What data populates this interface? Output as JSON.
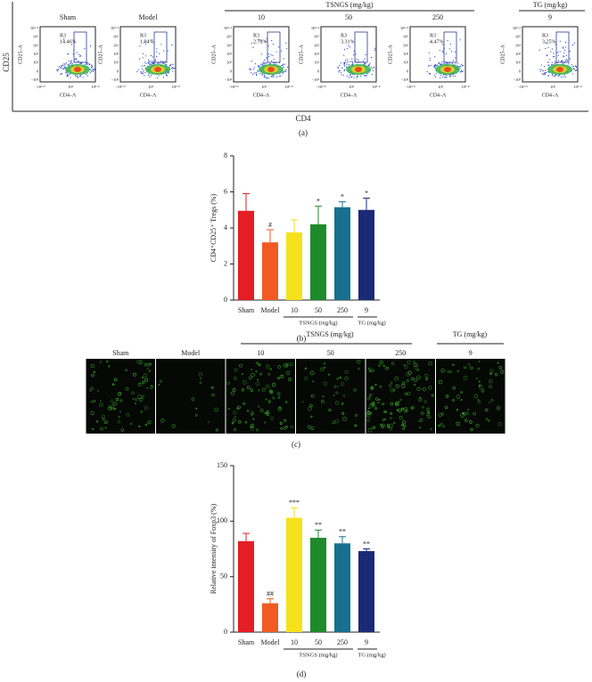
{
  "figure": {
    "panel_labels": [
      "(a)",
      "(b)",
      "(c)",
      "(d)"
    ]
  },
  "flow": {
    "group_headers": [
      "TSNGS (mg/kg)",
      "TG (mg/kg)"
    ],
    "axis_title_y": "CD25",
    "axis_title_x": "CD4",
    "y_axis_label": "CD25–A",
    "x_axis_label": "CD4–A",
    "y_ticks": [
      "10⁵·⁴",
      "10⁵",
      "10⁴",
      "10³",
      "10²",
      "0",
      "−10²"
    ],
    "x_ticks": [
      "−10²·⁸",
      "10³",
      "10⁵·⁸"
    ],
    "gate": "R3",
    "panels": [
      {
        "title": "Sham",
        "percent": "14.46%"
      },
      {
        "title": "Model",
        "percent": "1.94%"
      },
      {
        "title": "10",
        "percent": "2.78%"
      },
      {
        "title": "50",
        "percent": "3.31%"
      },
      {
        "title": "250",
        "percent": "4.47%"
      },
      {
        "title": "9",
        "percent": "3.25%"
      }
    ]
  },
  "chart_data": [
    {
      "type": "bar",
      "ylabel": "CD4⁺CD25⁺ Tregs (%)",
      "categories": [
        "Sham",
        "Model",
        "10",
        "50",
        "250",
        "9"
      ],
      "values": [
        4.95,
        3.2,
        3.75,
        4.2,
        5.15,
        5.0
      ],
      "errors": [
        0.95,
        0.7,
        0.7,
        1.0,
        0.3,
        0.65
      ],
      "annotations": [
        null,
        "#",
        null,
        "*",
        "*",
        "*"
      ],
      "colors": [
        "#e31e24",
        "#f15a22",
        "#f7e11b",
        "#1f8a2c",
        "#17708f",
        "#1b2a78"
      ],
      "group_labels": [
        "TSNGS (mg/kg)",
        "TG (mg/kg)"
      ],
      "ylim": [
        0,
        8
      ],
      "yticks": [
        0,
        2,
        4,
        6,
        8
      ]
    },
    {
      "type": "bar",
      "ylabel": "Relative intensity of Foxp3 (%)",
      "categories": [
        "Sham",
        "Model",
        "10",
        "50",
        "250",
        "9"
      ],
      "values": [
        82,
        26,
        103,
        85,
        80,
        73
      ],
      "errors": [
        7,
        4,
        9,
        7,
        6,
        2
      ],
      "annotations": [
        null,
        "##",
        "***",
        "**",
        "**",
        "**"
      ],
      "colors": [
        "#e31e24",
        "#f15a22",
        "#f7e11b",
        "#1f8a2c",
        "#17708f",
        "#1b2a78"
      ],
      "group_labels": [
        "TSNGS (mg/kg)",
        "TG (mg/kg)"
      ],
      "ylim": [
        0,
        150
      ],
      "yticks": [
        0,
        50,
        100,
        150
      ]
    }
  ],
  "images": {
    "group_headers": [
      "TSNGS (mg/kg)",
      "TG (mg/kg)"
    ],
    "labels": [
      "Sham",
      "Model",
      "10",
      "50",
      "250",
      "9"
    ]
  }
}
